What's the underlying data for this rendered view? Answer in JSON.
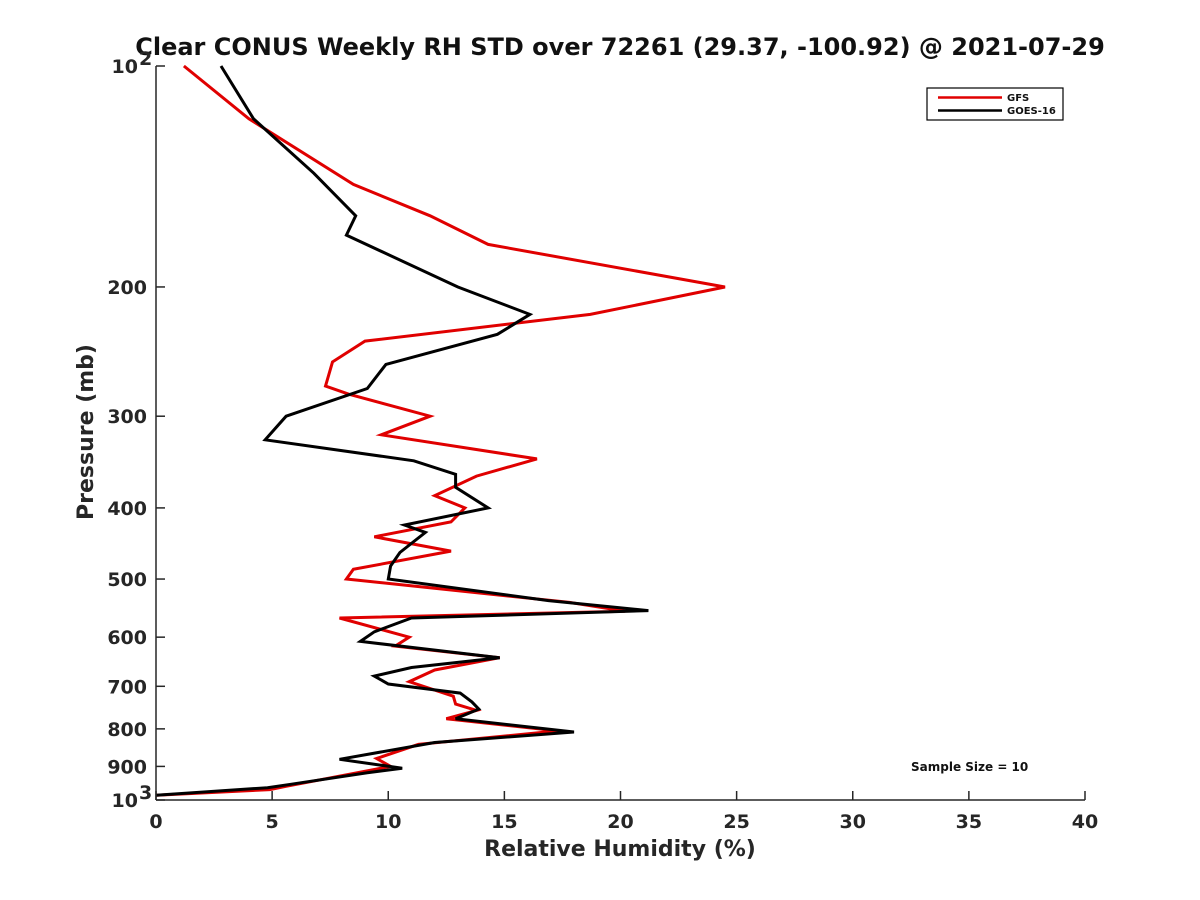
{
  "chart_data": {
    "type": "line",
    "title": "Clear CONUS Weekly RH STD over 72261 (29.37, -100.92) @ 2021-07-29",
    "xlabel": "Relative Humidity (%)",
    "ylabel": "Pressure (mb)",
    "xlim": [
      0,
      40
    ],
    "ylim": [
      100,
      1000
    ],
    "yscale": "log",
    "y_reversed": true,
    "xticks": [
      "0",
      "5",
      "10",
      "15",
      "20",
      "25",
      "30",
      "35",
      "40"
    ],
    "yticks": [
      {
        "value": 100,
        "label": "10",
        "sup": "2"
      },
      {
        "value": 200,
        "label": "200",
        "sup": ""
      },
      {
        "value": 300,
        "label": "300",
        "sup": ""
      },
      {
        "value": 400,
        "label": "400",
        "sup": ""
      },
      {
        "value": 500,
        "label": "500",
        "sup": ""
      },
      {
        "value": 600,
        "label": "600",
        "sup": ""
      },
      {
        "value": 700,
        "label": "700",
        "sup": ""
      },
      {
        "value": 800,
        "label": "800",
        "sup": ""
      },
      {
        "value": 900,
        "label": "900",
        "sup": ""
      },
      {
        "value": 1000,
        "label": "10",
        "sup": "3"
      }
    ],
    "legend_position": "top-right",
    "annotation": "Sample Size = 10",
    "series": [
      {
        "name": "GFS",
        "color": "#e00000",
        "points": [
          [
            1.2,
            100
          ],
          [
            4.0,
            118
          ],
          [
            8.5,
            145
          ],
          [
            11.8,
            160
          ],
          [
            14.3,
            175
          ],
          [
            24.5,
            200
          ],
          [
            18.7,
            218
          ],
          [
            9.0,
            237
          ],
          [
            7.6,
            253
          ],
          [
            7.3,
            273
          ],
          [
            8.3,
            280
          ],
          [
            11.8,
            300
          ],
          [
            9.7,
            318
          ],
          [
            16.4,
            343
          ],
          [
            13.8,
            362
          ],
          [
            12.0,
            385
          ],
          [
            13.3,
            400
          ],
          [
            12.7,
            418
          ],
          [
            9.4,
            438
          ],
          [
            12.7,
            458
          ],
          [
            8.5,
            485
          ],
          [
            8.2,
            500
          ],
          [
            17.8,
            538
          ],
          [
            20.2,
            553
          ],
          [
            7.9,
            565
          ],
          [
            10.9,
            600
          ],
          [
            10.3,
            617
          ],
          [
            14.8,
            640
          ],
          [
            12.0,
            665
          ],
          [
            10.9,
            690
          ],
          [
            12.8,
            722
          ],
          [
            12.9,
            740
          ],
          [
            13.8,
            755
          ],
          [
            12.5,
            775
          ],
          [
            17.3,
            805
          ],
          [
            11.3,
            840
          ],
          [
            9.5,
            878
          ],
          [
            10.1,
            900
          ],
          [
            5.6,
            958
          ],
          [
            4.9,
            968
          ],
          [
            0.0,
            985
          ]
        ]
      },
      {
        "name": "GOES-16",
        "color": "#000000",
        "points": [
          [
            2.8,
            100
          ],
          [
            4.2,
            118
          ],
          [
            6.8,
            140
          ],
          [
            8.6,
            160
          ],
          [
            8.2,
            170
          ],
          [
            13.0,
            200
          ],
          [
            16.1,
            218
          ],
          [
            14.7,
            232
          ],
          [
            9.9,
            255
          ],
          [
            9.1,
            275
          ],
          [
            5.6,
            300
          ],
          [
            4.7,
            323
          ],
          [
            11.1,
            345
          ],
          [
            12.9,
            360
          ],
          [
            12.9,
            375
          ],
          [
            14.3,
            400
          ],
          [
            10.7,
            422
          ],
          [
            11.6,
            432
          ],
          [
            10.5,
            460
          ],
          [
            10.1,
            480
          ],
          [
            10.0,
            500
          ],
          [
            16.9,
            535
          ],
          [
            21.2,
            552
          ],
          [
            11.0,
            565
          ],
          [
            9.4,
            590
          ],
          [
            8.8,
            608
          ],
          [
            14.8,
            640
          ],
          [
            11.0,
            660
          ],
          [
            9.4,
            678
          ],
          [
            10.0,
            695
          ],
          [
            13.1,
            715
          ],
          [
            13.6,
            735
          ],
          [
            13.9,
            752
          ],
          [
            12.9,
            775
          ],
          [
            18.0,
            808
          ],
          [
            12.0,
            835
          ],
          [
            7.9,
            880
          ],
          [
            10.6,
            905
          ],
          [
            9.1,
            918
          ],
          [
            5.8,
            952
          ],
          [
            4.8,
            962
          ],
          [
            0.0,
            985
          ]
        ]
      }
    ]
  }
}
